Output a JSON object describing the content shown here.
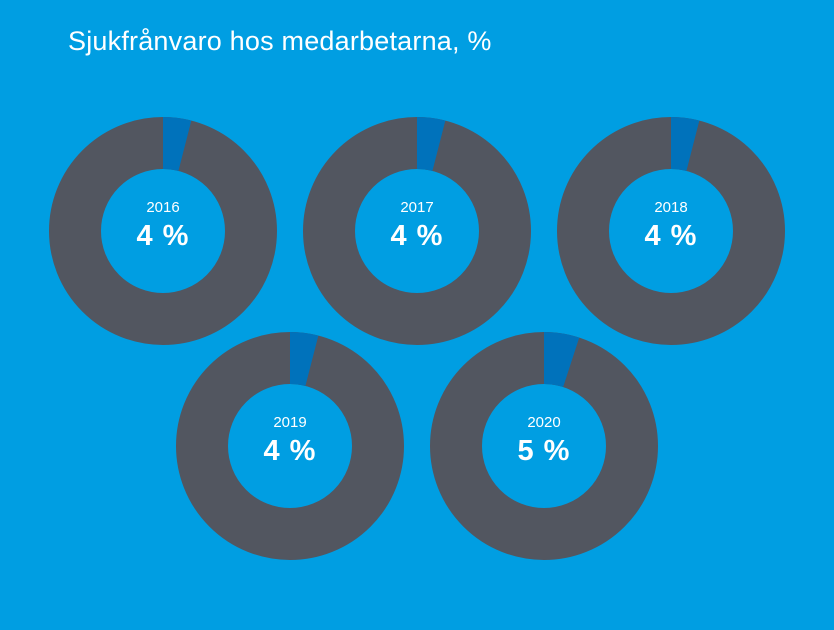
{
  "title": "Sjukfrånvaro hos medarbetarna, %",
  "colors": {
    "background": "#009ee2",
    "ring": "#525660",
    "share": "#0072bb",
    "text": "#ffffff"
  },
  "chart_data": {
    "type": "pie",
    "title": "Sjukfrånvaro hos medarbetarna, %",
    "unit": "%",
    "items": [
      {
        "year": "2016",
        "value": 4,
        "label": "4 %"
      },
      {
        "year": "2017",
        "value": 4,
        "label": "4 %"
      },
      {
        "year": "2018",
        "value": 4,
        "label": "4 %"
      },
      {
        "year": "2019",
        "value": 4,
        "label": "4 %"
      },
      {
        "year": "2020",
        "value": 5,
        "label": "5 %"
      }
    ]
  }
}
